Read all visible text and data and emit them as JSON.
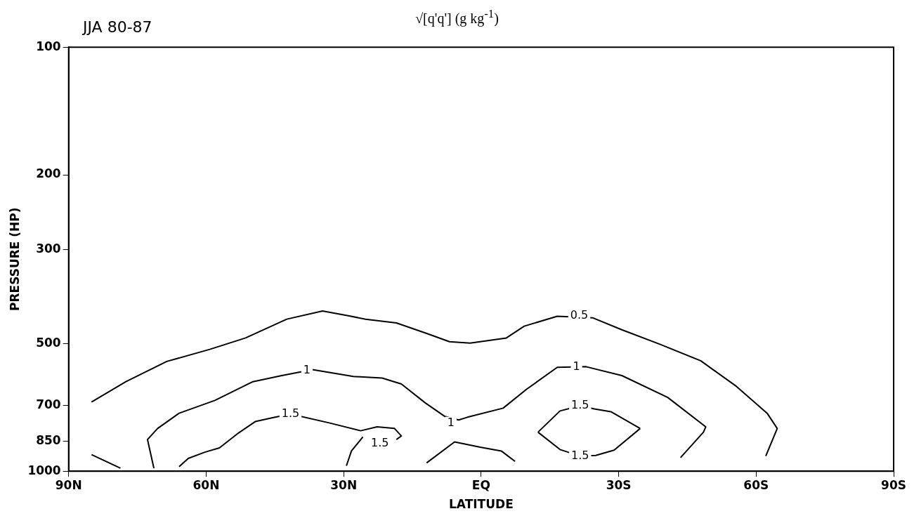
{
  "chart_data": {
    "type": "line",
    "title": "√[q'q']   (g kg$^{-1}$)",
    "subtitle": "JJA 80-87",
    "xlabel": "LATITUDE",
    "ylabel": "PRESSURE (HP)",
    "xlim": [
      90,
      -90
    ],
    "xticks": [
      {
        "value": 90,
        "label": "90N"
      },
      {
        "value": 60,
        "label": "60N"
      },
      {
        "value": 30,
        "label": "30N"
      },
      {
        "value": 0,
        "label": "EQ"
      },
      {
        "value": -30,
        "label": "30S"
      },
      {
        "value": -60,
        "label": "60S"
      },
      {
        "value": -90,
        "label": "90S"
      }
    ],
    "ylim": [
      1000,
      100
    ],
    "yticks": [
      100,
      200,
      300,
      500,
      700,
      850,
      1000
    ],
    "log": "y",
    "grid": false,
    "legend": false,
    "marker": "none",
    "line_style": "solid",
    "series": [
      {
        "color": "#000000",
        "x": [
          85.0,
          77.5,
          68.6,
          59.2,
          51.4,
          42.4,
          34.6,
          29.0,
          25.2,
          18.5,
          12.2,
          6.9,
          2.4,
          -5.5,
          -9.4,
          -16.6,
          -24.4,
          -30.7,
          -39.0,
          -47.9,
          -55.7,
          -62.4,
          -64.6,
          -62.1
        ],
        "values": [
          687,
          615,
          551,
          516,
          485,
          438,
          419,
          430,
          438,
          447,
          472,
          495,
          499,
          485,
          455,
          431,
          435,
          464,
          502,
          549,
          631,
          730,
          793,
          921
        ]
      },
      {
        "color": "#000000",
        "x": [
          85.0,
          78.7
        ],
        "values": [
          914,
          984
        ]
      },
      {
        "color": "#000000",
        "x": [
          71.4,
          72.8,
          70.6,
          65.9,
          58.1,
          49.8,
          43.5,
          36.8,
          27.9,
          21.6,
          17.4,
          12.2,
          8.0,
          4.9,
          3.0,
          -4.8,
          -9.9,
          -16.6,
          -22.9,
          -30.7,
          -40.7,
          -49.0,
          -48.5,
          -43.5
        ],
        "values": [
          984,
          842,
          793,
          730,
          681,
          615,
          595,
          576,
          598,
          603,
          623,
          690,
          742,
          757,
          746,
          710,
          641,
          569,
          567,
          595,
          670,
          786,
          809,
          929
        ]
      },
      {
        "color": "#000000",
        "x": [
          11.9,
          5.8,
          0.2,
          -4.4,
          -7.4
        ],
        "values": [
          956,
          853,
          878,
          896,
          948
        ]
      },
      {
        "color": "#000000",
        "x": [
          65.9,
          63.9,
          60.3,
          57.1,
          52.9,
          49.3,
          45.5,
          41.6,
          33.0,
          26.3,
          22.7,
          18.9,
          17.4,
          18.5
        ],
        "values": [
          976,
          933,
          902,
          881,
          812,
          764,
          748,
          733,
          770,
          803,
          786,
          793,
          826,
          842
        ]
      },
      {
        "color": "#000000",
        "x": [
          29.4,
          28.3,
          25.8
        ],
        "values": [
          971,
          896,
          830
        ]
      },
      {
        "color": "#000000",
        "x": [
          -12.4,
          -17.2,
          -21.6,
          -24.7,
          -28.3,
          -34.7
        ],
        "values": [
          809,
          721,
          701,
          713,
          724,
          793
        ]
      },
      {
        "color": "#000000",
        "x": [
          -12.4,
          -17.2,
          -21.6,
          -25.0,
          -29.0,
          -34.7
        ],
        "values": [
          809,
          889,
          921,
          918,
          892,
          793
        ]
      }
    ],
    "annotations": [
      {
        "text": "0.5",
        "x": -21.4,
        "y": 430
      },
      {
        "text": "1",
        "x": 38.0,
        "y": 579
      },
      {
        "text": "1",
        "x": 6.6,
        "y": 770
      },
      {
        "text": "1",
        "x": -20.8,
        "y": 567
      },
      {
        "text": "1.5",
        "x": 41.6,
        "y": 733
      },
      {
        "text": "1.5",
        "x": 22.1,
        "y": 860
      },
      {
        "text": "1.5",
        "x": -21.6,
        "y": 701
      },
      {
        "text": "1.5",
        "x": -21.6,
        "y": 921
      }
    ]
  }
}
